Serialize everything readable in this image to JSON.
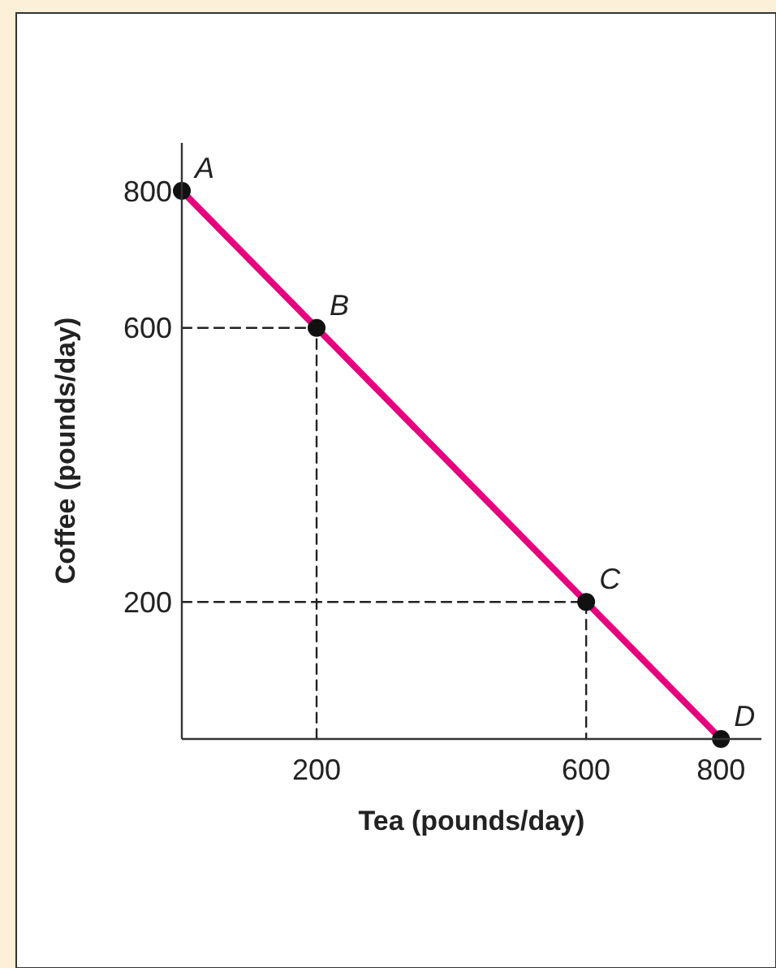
{
  "chart_data": {
    "type": "line",
    "xlabel": "Tea (pounds/day)",
    "ylabel": "Coffee (pounds/day)",
    "xlim": [
      0,
      860
    ],
    "ylim": [
      0,
      870
    ],
    "xticks": [
      200,
      600,
      800
    ],
    "yticks": [
      200,
      600,
      800
    ],
    "grid": false,
    "series": [
      {
        "x": [
          0,
          200,
          600,
          800
        ],
        "values": [
          800,
          600,
          200,
          0
        ],
        "color": "#e6007e",
        "marker": "circle",
        "line_style": "solid"
      },
      {
        "x": [
          0,
          200,
          200
        ],
        "values": [
          600,
          600,
          0
        ],
        "color": "#222222",
        "marker": "none",
        "line_style": "dashed"
      },
      {
        "x": [
          0,
          600,
          600
        ],
        "values": [
          200,
          200,
          0
        ],
        "color": "#222222",
        "marker": "none",
        "line_style": "dashed"
      }
    ],
    "annotations": [
      {
        "text": "A",
        "x": 0,
        "y": 800
      },
      {
        "text": "B",
        "x": 200,
        "y": 600
      },
      {
        "text": "C",
        "x": 600,
        "y": 200
      },
      {
        "text": "D",
        "x": 800,
        "y": 0
      }
    ]
  }
}
